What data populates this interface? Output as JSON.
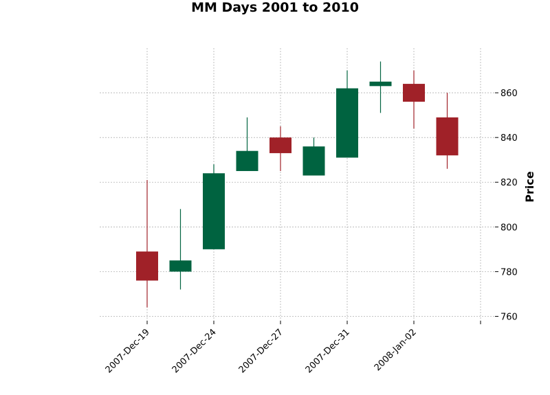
{
  "chart_data": {
    "type": "candlestick",
    "title": "MM Days 2001 to 2010",
    "ylabel": "Price",
    "ylim": [
      758,
      880
    ],
    "yticks": [
      760,
      780,
      800,
      820,
      840,
      860
    ],
    "grid": true,
    "y_axis_side": "right",
    "up_color": "#006340",
    "down_color": "#a02128",
    "xtick_labels": [
      {
        "index": 0,
        "label": "2007-Dec-19"
      },
      {
        "index": 2,
        "label": "2007-Dec-24"
      },
      {
        "index": 4,
        "label": "2007-Dec-27"
      },
      {
        "index": 6,
        "label": "2007-Dec-31"
      },
      {
        "index": 8,
        "label": "2008-Jan-02"
      },
      {
        "index": 10,
        "label": ""
      }
    ],
    "candles": [
      {
        "open": 789,
        "high": 821,
        "low": 764,
        "close": 776
      },
      {
        "open": 780,
        "high": 808,
        "low": 772,
        "close": 785
      },
      {
        "open": 790,
        "high": 828,
        "low": 790,
        "close": 824
      },
      {
        "open": 825,
        "high": 849,
        "low": 825,
        "close": 834
      },
      {
        "open": 840,
        "high": 845,
        "low": 825,
        "close": 833
      },
      {
        "open": 823,
        "high": 840,
        "low": 823,
        "close": 836
      },
      {
        "open": 831,
        "high": 870,
        "low": 831,
        "close": 862
      },
      {
        "open": 863,
        "high": 874,
        "low": 851,
        "close": 865
      },
      {
        "open": 864,
        "high": 870,
        "low": 844,
        "close": 856
      },
      {
        "open": 849,
        "high": 860,
        "low": 826,
        "close": 832
      }
    ]
  }
}
